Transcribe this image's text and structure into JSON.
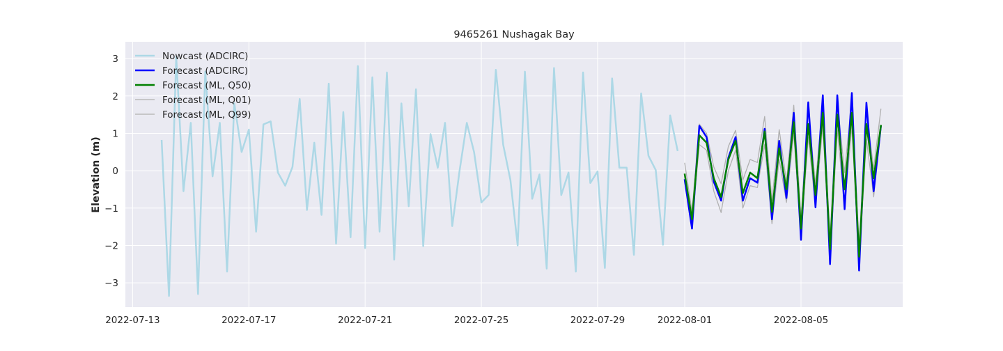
{
  "chart_data": {
    "type": "line",
    "title": "9465261 Nushagak Bay",
    "xlabel": "",
    "ylabel": "Elevation (m)",
    "x_axis": "date",
    "xlim": [
      "2022-07-12T18:00",
      "2022-08-08T12:00"
    ],
    "ylim": [
      -3.65,
      3.45
    ],
    "grid": true,
    "legend_position": "upper-left",
    "x_ticks": [
      "2022-07-13",
      "2022-07-17",
      "2022-07-21",
      "2022-07-25",
      "2022-07-29",
      "2022-08-01",
      "2022-08-05"
    ],
    "y_ticks": [
      -3,
      -2,
      -1,
      0,
      1,
      2,
      3
    ],
    "colors": {
      "plot_background": "#eaeaf2",
      "grid": "#ffffff",
      "nowcast": "#add8e6",
      "forecast_adcirc": "#0000ff",
      "forecast_ml_q50": "#008000",
      "forecast_ml_q01": "#b0b0b0",
      "forecast_ml_q99": "#b0b0b0"
    },
    "series": [
      {
        "name": "Nowcast (ADCIRC)",
        "key": "nowcast",
        "color": "#add8e6",
        "stroke_width": 2.5,
        "start": "2022-07-14T00:00",
        "interval_hours": 6,
        "values": [
          0.8,
          -3.35,
          3.05,
          -0.55,
          1.28,
          -3.3,
          2.65,
          -0.15,
          1.28,
          -2.7,
          1.8,
          0.5,
          1.1,
          -1.63,
          1.24,
          1.32,
          -0.05,
          -0.4,
          0.1,
          1.92,
          -1.05,
          0.75,
          -1.18,
          2.33,
          -1.95,
          1.57,
          -1.78,
          2.8,
          -2.07,
          2.5,
          -1.63,
          2.63,
          -2.38,
          1.8,
          -0.95,
          2.18,
          -2.02,
          0.98,
          0.08,
          1.28,
          -1.48,
          0.0,
          1.28,
          0.5,
          -0.85,
          -0.65,
          2.7,
          0.7,
          -0.25,
          -2.0,
          2.65,
          -0.75,
          -0.1,
          -2.62,
          2.75,
          -0.65,
          -0.05,
          -2.7,
          2.63,
          -0.33,
          -0.02,
          -2.6,
          2.47,
          0.08,
          0.08,
          -2.25,
          2.07,
          0.4,
          0.02,
          -1.98,
          1.48,
          0.55
        ]
      },
      {
        "name": "Forecast (ADCIRC)",
        "key": "forecast_adcirc",
        "color": "#0000ff",
        "stroke_width": 2.5,
        "start": "2022-08-01T00:00",
        "interval_hours": 6,
        "values": [
          -0.25,
          -1.55,
          1.2,
          0.9,
          -0.3,
          -0.8,
          0.35,
          0.9,
          -0.8,
          -0.2,
          -0.32,
          1.12,
          -1.3,
          0.8,
          -0.73,
          1.55,
          -1.85,
          1.83,
          -0.98,
          2.02,
          -2.5,
          2.02,
          -1.03,
          2.08,
          -2.67,
          1.82,
          -0.55,
          1.2
        ]
      },
      {
        "name": "Forecast (ML, Q50)",
        "key": "forecast_ml_q50",
        "color": "#008000",
        "stroke_width": 2.5,
        "start": "2022-08-01T00:00",
        "interval_hours": 6,
        "values": [
          -0.1,
          -1.3,
          0.95,
          0.75,
          -0.2,
          -0.7,
          0.3,
          0.8,
          -0.6,
          -0.05,
          -0.2,
          1.05,
          -1.1,
          0.6,
          -0.5,
          1.3,
          -1.55,
          1.25,
          -0.65,
          1.55,
          -2.1,
          1.5,
          -0.5,
          1.55,
          -2.3,
          1.25,
          -0.2,
          1.2
        ]
      },
      {
        "name": "Forecast (ML, Q01)",
        "key": "forecast_ml_q01",
        "color": "#b0b0b0",
        "stroke_width": 1.3,
        "start": "2022-08-01T00:00",
        "interval_hours": 6,
        "values": [
          -0.3,
          -1.45,
          0.7,
          0.55,
          -0.55,
          -1.12,
          0.0,
          0.55,
          -1.0,
          -0.4,
          -0.45,
          0.7,
          -1.42,
          0.3,
          -0.85,
          1.0,
          -1.8,
          0.9,
          -0.95,
          1.2,
          -2.35,
          1.1,
          -0.95,
          1.2,
          -2.5,
          0.85,
          -0.7,
          1.1
        ]
      },
      {
        "name": "Forecast (ML, Q99)",
        "key": "forecast_ml_q99",
        "color": "#b0b0b0",
        "stroke_width": 1.3,
        "start": "2022-08-01T00:00",
        "interval_hours": 6,
        "values": [
          0.2,
          -1.1,
          1.25,
          1.0,
          0.1,
          -0.35,
          0.65,
          1.08,
          -0.25,
          0.3,
          0.22,
          1.45,
          -0.8,
          1.1,
          -0.3,
          1.75,
          -1.25,
          1.6,
          -0.35,
          1.85,
          -1.8,
          1.85,
          -0.05,
          1.95,
          -2.0,
          1.6,
          0.05,
          1.65
        ]
      }
    ]
  }
}
